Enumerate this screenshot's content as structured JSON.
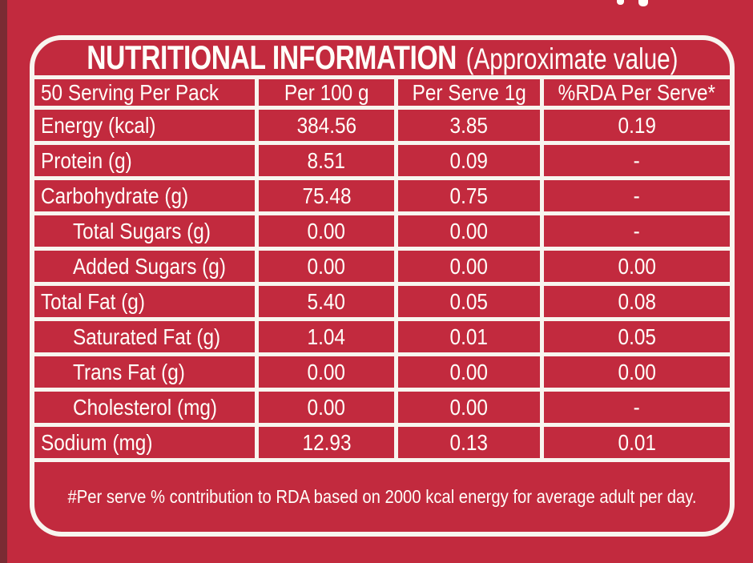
{
  "colors": {
    "background_red": "#c22a3e",
    "left_edge_shadow": "#7a2b33",
    "border_white": "#f8f5ef",
    "text_white": "#fffef9"
  },
  "title": {
    "main": "NUTRITIONAL INFORMATION",
    "sub": "(Approximate value)"
  },
  "table": {
    "columns": [
      "50 Serving Per Pack",
      "Per 100 g",
      "Per Serve 1g",
      "%RDA Per Serve*"
    ],
    "rows": [
      {
        "label": "Energy (kcal)",
        "per_100g": "384.56",
        "per_serve": "3.85",
        "rda": "0.19"
      },
      {
        "label": "Protein (g)",
        "per_100g": "8.51",
        "per_serve": "0.09",
        "rda": "-"
      },
      {
        "label": "Carbohydrate (g)",
        "per_100g": "75.48",
        "per_serve": "0.75",
        "rda": "-"
      },
      {
        "label": "Total Sugars (g)",
        "per_100g": "0.00",
        "per_serve": "0.00",
        "rda": "-"
      },
      {
        "label": "Added Sugars (g)",
        "per_100g": "0.00",
        "per_serve": "0.00",
        "rda": "0.00"
      },
      {
        "label": "Total Fat (g)",
        "per_100g": "5.40",
        "per_serve": "0.05",
        "rda": "0.08"
      },
      {
        "label": "Saturated Fat (g)",
        "per_100g": "1.04",
        "per_serve": "0.01",
        "rda": "0.05"
      },
      {
        "label": "Trans Fat (g)",
        "per_100g": "0.00",
        "per_serve": "0.00",
        "rda": "0.00"
      },
      {
        "label": "Cholesterol (mg)",
        "per_100g": "0.00",
        "per_serve": "0.00",
        "rda": "-"
      },
      {
        "label": "Sodium (mg)",
        "per_100g": "12.93",
        "per_serve": "0.13",
        "rda": "0.01"
      }
    ]
  },
  "footnote": "#Per serve % contribution to RDA based on 2000 kcal energy for average adult per day."
}
